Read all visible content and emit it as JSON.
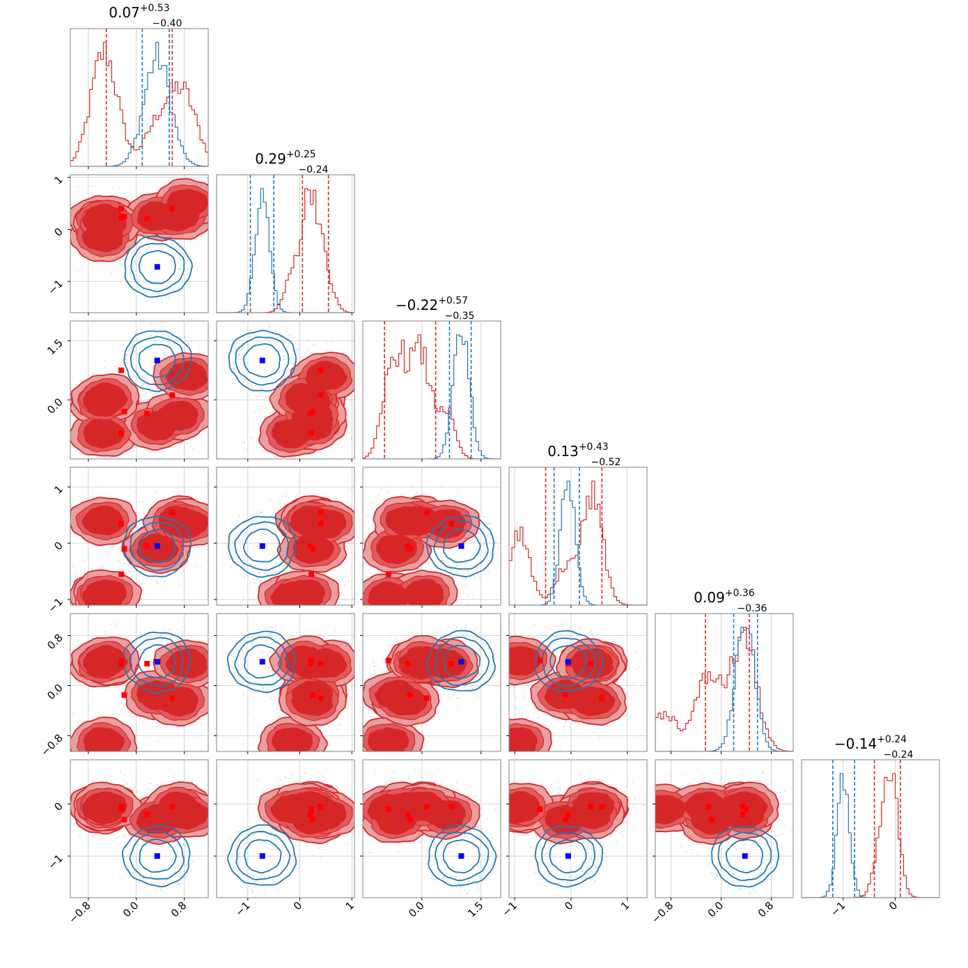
{
  "colors": {
    "red": "#d62728",
    "red_light": "#e8a0a1",
    "red_mid": "#e15a5b",
    "blue": "#1f77b4",
    "blue_marker": "#0000ff",
    "red_marker": "#ff0000",
    "grid": "#c8c8c8",
    "frame": "#808080"
  },
  "chart_data": {
    "type": "corner",
    "ndim": 6,
    "grid": true,
    "titles": [
      {
        "median": "0.07",
        "plus": "+0.53",
        "minus": "−0.40"
      },
      {
        "median": "0.29",
        "plus": "+0.25",
        "minus": "−0.24"
      },
      {
        "median": "−0.22",
        "plus": "+0.57",
        "minus": "−0.35"
      },
      {
        "median": "0.13",
        "plus": "+0.43",
        "minus": "−0.52"
      },
      {
        "median": "0.09",
        "plus": "+0.36",
        "minus": "−0.36"
      },
      {
        "median": "−0.14",
        "plus": "+0.24",
        "minus": "−0.24"
      }
    ],
    "ranges": [
      [
        -1.1,
        1.2
      ],
      [
        -1.6,
        1.05
      ],
      [
        -1.5,
        2.0
      ],
      [
        -1.1,
        1.35
      ],
      [
        -1.05,
        1.15
      ],
      [
        -1.8,
        0.85
      ]
    ],
    "ticks": [
      {
        "values": [
          -0.8,
          0.0,
          0.8
        ],
        "labels": [
          "−0.8",
          "0.0",
          "0.8"
        ]
      },
      {
        "values": [
          -1,
          0,
          1
        ],
        "labels": [
          "−1",
          "0",
          "1"
        ]
      },
      {
        "values": [
          0.0,
          1.5
        ],
        "labels": [
          "0.0",
          "1.5"
        ]
      },
      {
        "values": [
          -1,
          0,
          1
        ],
        "labels": [
          "−1",
          "0",
          "1"
        ]
      },
      {
        "values": [
          -0.8,
          0.0,
          0.8
        ],
        "labels": [
          "−0.8",
          "0.0",
          "0.8"
        ]
      },
      {
        "values": [
          -1,
          0
        ],
        "labels": [
          "−1",
          "0"
        ]
      }
    ],
    "red_series": {
      "components": [
        [
          -0.55,
          -0.15,
          -0.85,
          -0.95,
          -0.9,
          -0.1
        ],
        [
          -0.55,
          0.2,
          -0.05,
          0.4,
          0.35,
          -0.05
        ],
        [
          0.35,
          0.25,
          -0.65,
          -0.1,
          -0.15,
          -0.3
        ],
        [
          0.7,
          0.25,
          -0.4,
          0.4,
          -0.25,
          -0.05
        ],
        [
          0.85,
          0.5,
          0.6,
          0.35,
          0.35,
          -0.2
        ],
        [
          -0.5,
          0.1,
          0.05,
          -0.9,
          0.4,
          -0.05
        ]
      ],
      "spread": [
        0.22,
        0.15,
        0.22,
        0.18,
        0.2,
        0.14
      ],
      "quantiles_16_84": [
        [
          -0.5,
          0.6
        ],
        [
          0.05,
          0.55
        ],
        [
          -0.95,
          0.35
        ],
        [
          -0.45,
          0.55
        ],
        [
          -0.25,
          0.45
        ],
        [
          -0.4,
          0.1
        ]
      ]
    },
    "blue_series": {
      "center": [
        0.35,
        -0.72,
        1.0,
        -0.05,
        0.38,
        -1.0
      ],
      "spread": [
        0.22,
        0.14,
        0.2,
        0.13,
        0.15,
        0.12
      ],
      "quantiles_16_84": [
        [
          0.1,
          0.55
        ],
        [
          -0.95,
          -0.5
        ],
        [
          0.7,
          1.25
        ],
        [
          -0.3,
          0.15
        ],
        [
          0.2,
          0.58
        ],
        [
          -1.2,
          -0.78
        ]
      ]
    },
    "markers": {
      "red_points": [
        [
          -0.25,
          0.22,
          -0.85,
          -0.55,
          0.4,
          -0.1
        ],
        [
          -0.25,
          0.4,
          0.75,
          0.35,
          0.35,
          -0.05
        ],
        [
          0.18,
          0.2,
          -0.35,
          -0.05,
          0.35,
          -0.2
        ],
        [
          0.6,
          0.4,
          0.12,
          0.55,
          -0.2,
          -0.05
        ],
        [
          -0.2,
          0.25,
          -0.3,
          -0.1,
          -0.15,
          -0.3
        ]
      ],
      "blue_point": [
        0.35,
        -0.72,
        1.0,
        -0.05,
        0.38,
        -1.0
      ]
    }
  }
}
